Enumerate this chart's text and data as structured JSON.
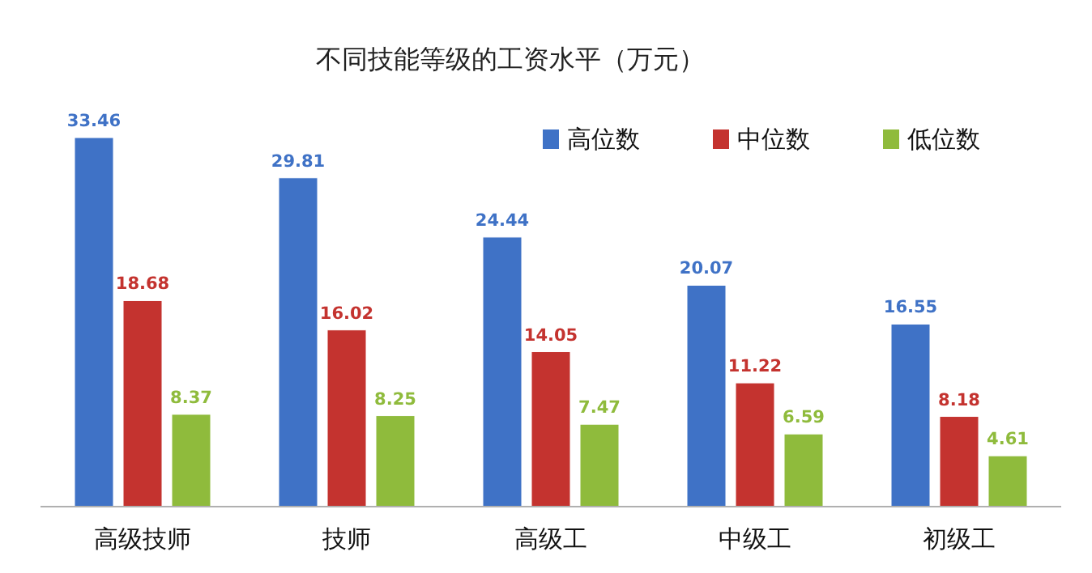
{
  "chart_data": {
    "type": "bar",
    "title": "不同技能等级的工资水平（万元）",
    "categories": [
      "高级技师",
      "技师",
      "高级工",
      "中级工",
      "初级工"
    ],
    "series": [
      {
        "name": "高位数",
        "color": "#3f72c6",
        "values": [
          33.46,
          29.81,
          24.44,
          20.07,
          16.55
        ]
      },
      {
        "name": "中位数",
        "color": "#c4332f",
        "values": [
          18.68,
          16.02,
          14.05,
          11.22,
          8.18
        ]
      },
      {
        "name": "低位数",
        "color": "#8fbb3c",
        "values": [
          8.37,
          8.25,
          7.47,
          6.59,
          4.61
        ]
      }
    ],
    "data_labels": true,
    "legend": "top right"
  }
}
